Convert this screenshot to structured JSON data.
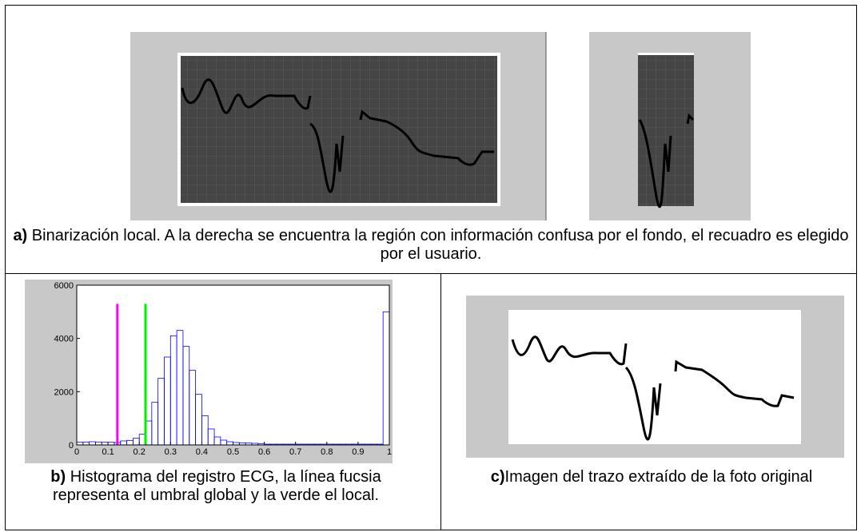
{
  "caption_a": {
    "label": "a)",
    "text": "Binarización local. A la derecha se encuentra la región con información confusa por el fondo, el recuadro es elegido por el usuario."
  },
  "caption_b": {
    "label": "b)",
    "text": "Histograma del registro ECG, la línea fucsia representa el umbral global y la verde el local."
  },
  "caption_c": {
    "label": "c)",
    "text": "Imagen del trazo extraído de la foto original"
  },
  "chart_data": {
    "type": "histogram",
    "color": "#0000ff",
    "bins": [
      0,
      0.02,
      0.04,
      0.06,
      0.08,
      0.1,
      0.12,
      0.14,
      0.16,
      0.18,
      0.2,
      0.22,
      0.24,
      0.26,
      0.28,
      0.3,
      0.32,
      0.34,
      0.36,
      0.38,
      0.4,
      0.42,
      0.44,
      0.46,
      0.48,
      0.5,
      0.52,
      0.54,
      0.56,
      0.58,
      0.6,
      0.62,
      0.64,
      0.66,
      0.68,
      0.7,
      0.72,
      0.74,
      0.76,
      0.78,
      0.8,
      0.82,
      0.84,
      0.86,
      0.88,
      0.9,
      0.92,
      0.94,
      0.96,
      0.98,
      1
    ],
    "counts": [
      100,
      110,
      120,
      110,
      100,
      100,
      90,
      150,
      170,
      250,
      400,
      900,
      1600,
      2500,
      3300,
      4100,
      4300,
      3700,
      2800,
      1900,
      1100,
      600,
      300,
      180,
      120,
      90,
      80,
      70,
      60,
      50,
      30,
      30,
      30,
      30,
      30,
      30,
      30,
      30,
      30,
      30,
      30,
      30,
      30,
      30,
      30,
      30,
      30,
      30,
      30,
      5000
    ],
    "thresholds": [
      {
        "x": 0.13,
        "height": 5300,
        "color": "#ff00ff"
      },
      {
        "x": 0.22,
        "height": 5300,
        "color": "#00ee00"
      }
    ],
    "xlim": [
      0,
      1
    ],
    "xticks": [
      0,
      0.1,
      0.2,
      0.3,
      0.4,
      0.5,
      0.6,
      0.7,
      0.8,
      0.9,
      1
    ],
    "ylim": [
      0,
      6000
    ],
    "yticks": [
      0,
      2000,
      4000,
      6000
    ]
  }
}
